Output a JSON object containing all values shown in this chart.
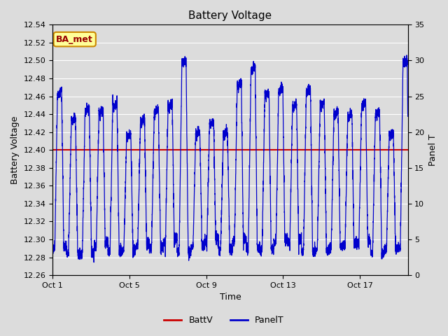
{
  "title": "Battery Voltage",
  "xlabel": "Time",
  "ylabel_left": "Battery Voltage",
  "ylabel_right": "Panel T",
  "xlim": [
    0,
    18.5
  ],
  "ylim_left": [
    12.26,
    12.54
  ],
  "ylim_right": [
    0,
    35
  ],
  "battv_value": 12.4,
  "x_tick_labels": [
    "Oct 1",
    "Oct 5",
    "Oct 9",
    "Oct 13",
    "Oct 17"
  ],
  "x_tick_positions": [
    0,
    4,
    8,
    12,
    16
  ],
  "y_left_ticks": [
    12.26,
    12.28,
    12.3,
    12.32,
    12.34,
    12.36,
    12.38,
    12.4,
    12.42,
    12.44,
    12.46,
    12.48,
    12.5,
    12.52,
    12.54
  ],
  "y_right_ticks": [
    0,
    5,
    10,
    15,
    20,
    25,
    30,
    35
  ],
  "bg_color": "#dcdcdc",
  "plot_bg_color": "#dcdcdc",
  "batt_line_color": "#cc0000",
  "panel_line_color": "#0000cc",
  "title_fontsize": 11,
  "label_fontsize": 9,
  "tick_fontsize": 8,
  "legend_fontsize": 9,
  "annotation_text": "BA_met",
  "annotation_bg": "#ffff99",
  "annotation_border": "#cc8800",
  "annotation_text_color": "#990000",
  "period": 0.72,
  "n_cycles": 26
}
